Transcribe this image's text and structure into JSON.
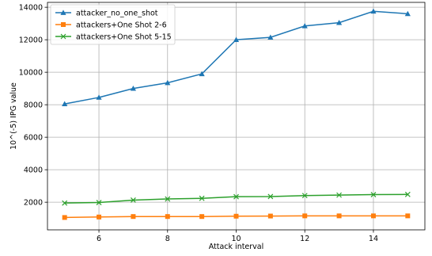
{
  "chart_data": {
    "type": "line",
    "title": "",
    "xlabel": "Attack interval",
    "ylabel": "10^(-5) IPG value",
    "xlim": [
      4.5,
      15.5
    ],
    "ylim": [
      300,
      14300
    ],
    "x": [
      5,
      6,
      7,
      8,
      9,
      10,
      11,
      12,
      13,
      14,
      15
    ],
    "xticks": [
      6,
      8,
      10,
      12,
      14
    ],
    "yticks": [
      2000,
      4000,
      6000,
      8000,
      10000,
      12000,
      14000
    ],
    "grid": true,
    "legend_position": "top-left",
    "series": [
      {
        "name": "attacker_no_one_shot",
        "color": "#1f77b4",
        "marker": "triangle",
        "values": [
          8050,
          8450,
          9000,
          9350,
          9900,
          12000,
          12150,
          12850,
          13050,
          13750,
          13600
        ]
      },
      {
        "name": "attackers+One Shot 2-6",
        "color": "#ff7f0e",
        "marker": "square",
        "values": [
          1060,
          1090,
          1120,
          1120,
          1120,
          1140,
          1150,
          1160,
          1160,
          1160,
          1160
        ]
      },
      {
        "name": "attackers+One Shot 5-15",
        "color": "#2ca02c",
        "marker": "x",
        "values": [
          1950,
          1980,
          2130,
          2200,
          2240,
          2340,
          2350,
          2410,
          2440,
          2470,
          2480
        ]
      }
    ]
  }
}
